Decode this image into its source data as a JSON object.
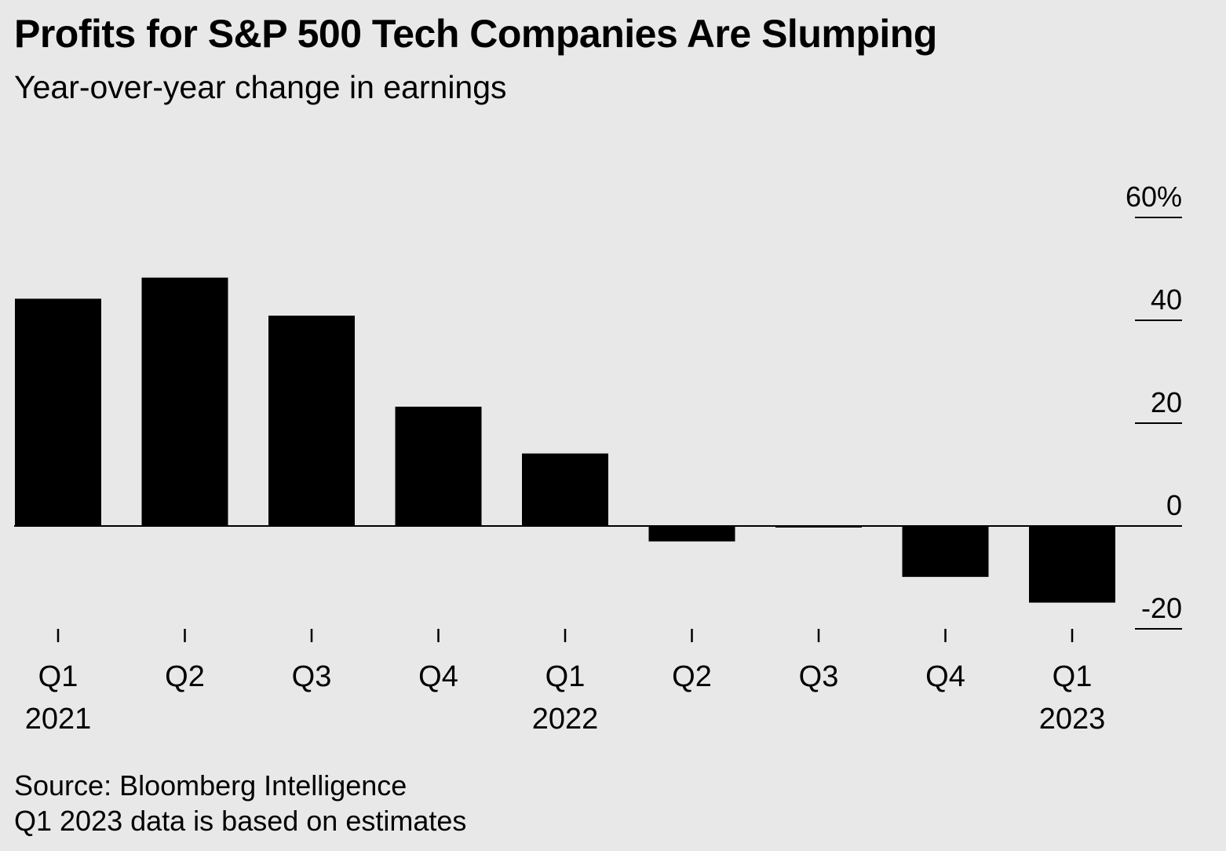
{
  "header": {
    "title": "Profits for S&P 500 Tech Companies Are Slumping",
    "subtitle": "Year-over-year change in earnings"
  },
  "footer": {
    "source": "Source: Bloomberg Intelligence",
    "note": "Q1 2023 data is based on estimates"
  },
  "colors": {
    "background": "#e8e8e8",
    "bar": "#000000",
    "axis": "#000000"
  },
  "chart_data": {
    "type": "bar",
    "title": "Profits for S&P 500 Tech Companies Are Slumping",
    "subtitle": "Year-over-year change in earnings",
    "categories": [
      "Q1",
      "Q2",
      "Q3",
      "Q4",
      "Q1",
      "Q2",
      "Q3",
      "Q4",
      "Q1"
    ],
    "year_labels": [
      "2021",
      "",
      "",
      "",
      "2022",
      "",
      "",
      "",
      "2023"
    ],
    "values": [
      44.2,
      48.3,
      40.9,
      23.2,
      14.1,
      -3.0,
      -0.2,
      -9.9,
      -14.9
    ],
    "ylim": [
      -20,
      60
    ],
    "yticks": [
      60,
      40,
      20,
      0,
      -20
    ],
    "ytick_labels": [
      "60%",
      "40",
      "20",
      "0",
      "-20"
    ],
    "y_axis_side": "right",
    "grid": false,
    "legend": "none"
  }
}
